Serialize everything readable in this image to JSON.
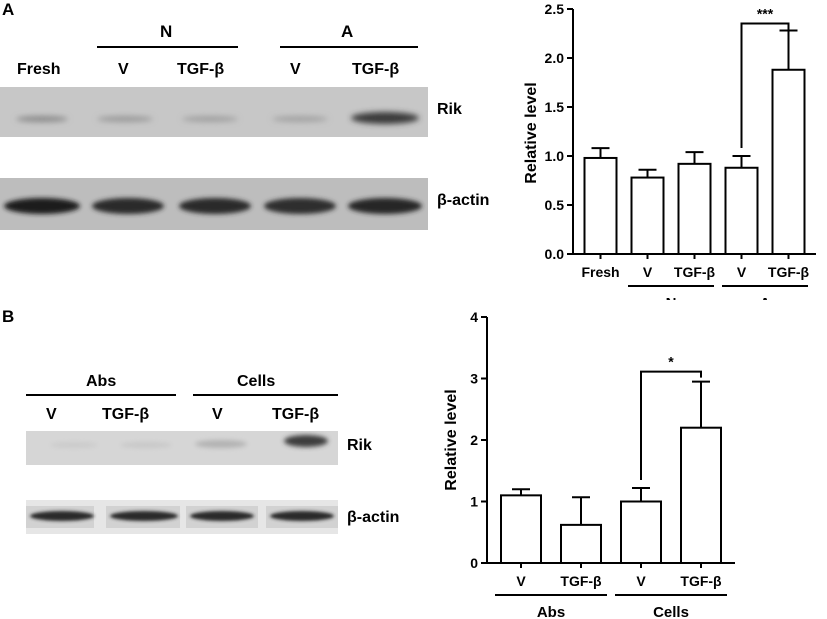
{
  "panel_a": {
    "letter": "A",
    "group_n": "N",
    "group_a": "A",
    "lanes": [
      "Fresh",
      "V",
      "TGF-β",
      "V",
      "TGF-β"
    ],
    "blot_labels": [
      "Rik",
      "β-actin"
    ]
  },
  "panel_b": {
    "letter": "B",
    "group_abs": "Abs",
    "group_cells": "Cells",
    "lanes": [
      "V",
      "TGF-β",
      "V",
      "TGF-β"
    ],
    "blot_labels": [
      "Rik",
      "β-actin"
    ]
  },
  "chart_data": [
    {
      "type": "bar",
      "categories": [
        "Fresh",
        "V",
        "TGF-β",
        "V",
        "TGF-β"
      ],
      "groups": [
        {
          "label": "N",
          "categories": [
            1,
            2
          ]
        },
        {
          "label": "A",
          "categories": [
            3,
            4
          ]
        }
      ],
      "values": [
        0.98,
        0.78,
        0.92,
        0.88,
        1.88
      ],
      "errors": [
        0.1,
        0.08,
        0.12,
        0.12,
        0.4
      ],
      "ylabel": "Relative level",
      "ylim": [
        0,
        2.5
      ],
      "yticks": [
        "0.0",
        "0.5",
        "1.0",
        "1.5",
        "2.0",
        "2.5"
      ],
      "significance": {
        "from": 3,
        "to": 4,
        "label": "***"
      }
    },
    {
      "type": "bar",
      "categories": [
        "V",
        "TGF-β",
        "V",
        "TGF-β"
      ],
      "groups": [
        {
          "label": "Abs",
          "categories": [
            0,
            1
          ]
        },
        {
          "label": "Cells",
          "categories": [
            2,
            3
          ]
        }
      ],
      "values": [
        1.1,
        0.62,
        1.0,
        2.2
      ],
      "errors": [
        0.1,
        0.45,
        0.22,
        0.75
      ],
      "ylabel": "Relative level",
      "ylim": [
        0,
        4
      ],
      "yticks": [
        "0",
        "1",
        "2",
        "3",
        "4"
      ],
      "significance": {
        "from": 2,
        "to": 3,
        "label": "*"
      }
    }
  ]
}
